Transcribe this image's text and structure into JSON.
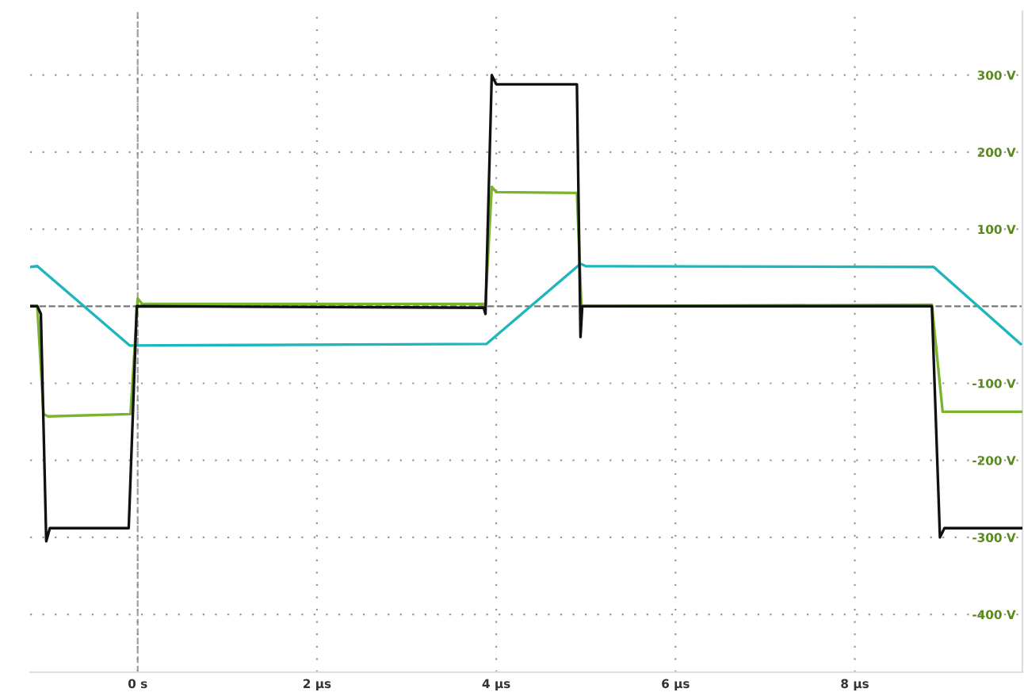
{
  "chart_data": {
    "type": "line",
    "xlim": [
      -1.2,
      9.87
    ],
    "ylim": [
      -475,
      383
    ],
    "xticks": [
      {
        "value": 0,
        "label": "0 s"
      },
      {
        "value": 2,
        "label": "2 µs"
      },
      {
        "value": 4,
        "label": "4 µs"
      },
      {
        "value": 6,
        "label": "6 µs"
      },
      {
        "value": 8,
        "label": "8 µs"
      }
    ],
    "yticks": [
      {
        "value": 300,
        "label": "300 V"
      },
      {
        "value": 200,
        "label": "200 V"
      },
      {
        "value": 100,
        "label": "100 V"
      },
      {
        "value": -100,
        "label": "-100 V"
      },
      {
        "value": -200,
        "label": "-200 V"
      },
      {
        "value": -300,
        "label": "-300 V"
      },
      {
        "value": -400,
        "label": "-400 V"
      }
    ],
    "grid": true,
    "marker": "none",
    "line_style": "solid",
    "ref_lines": [
      {
        "axis": "y",
        "value": 0,
        "color": "#555555",
        "line_style": "dashed"
      },
      {
        "axis": "x",
        "value": 0,
        "color": "#888888",
        "line_style": "dashed"
      }
    ],
    "series": [
      {
        "color": "#1fb5bd",
        "x": [
          -1.2,
          -1.12,
          -0.09,
          3.89,
          4.94,
          5.0,
          8.88,
          9.85
        ],
        "values": [
          51,
          52,
          -51,
          -49,
          55,
          52,
          51,
          -49
        ]
      },
      {
        "color": "#7ab32e",
        "x": [
          -1.2,
          -1.12,
          -1.05,
          -1.0,
          -0.08,
          0.0,
          0.05,
          3.88,
          3.95,
          4.0,
          4.9,
          4.95,
          8.86,
          8.98,
          9.87
        ],
        "values": [
          0,
          0,
          -140,
          -143,
          -140,
          10,
          3,
          3,
          155,
          148,
          147,
          0,
          2,
          -137,
          -137
        ]
      },
      {
        "color": "#111111",
        "x": [
          -1.2,
          -1.12,
          -1.08,
          -1.02,
          -0.98,
          -0.1,
          -0.01,
          3.86,
          3.88,
          3.95,
          4.0,
          4.9,
          4.94,
          4.96,
          8.86,
          8.95,
          9.0,
          9.87
        ],
        "values": [
          0,
          0,
          -10,
          -305,
          -288,
          -288,
          0,
          -2,
          -10,
          300,
          288,
          288,
          -40,
          0,
          0,
          -300,
          -288,
          -288
        ]
      }
    ]
  }
}
